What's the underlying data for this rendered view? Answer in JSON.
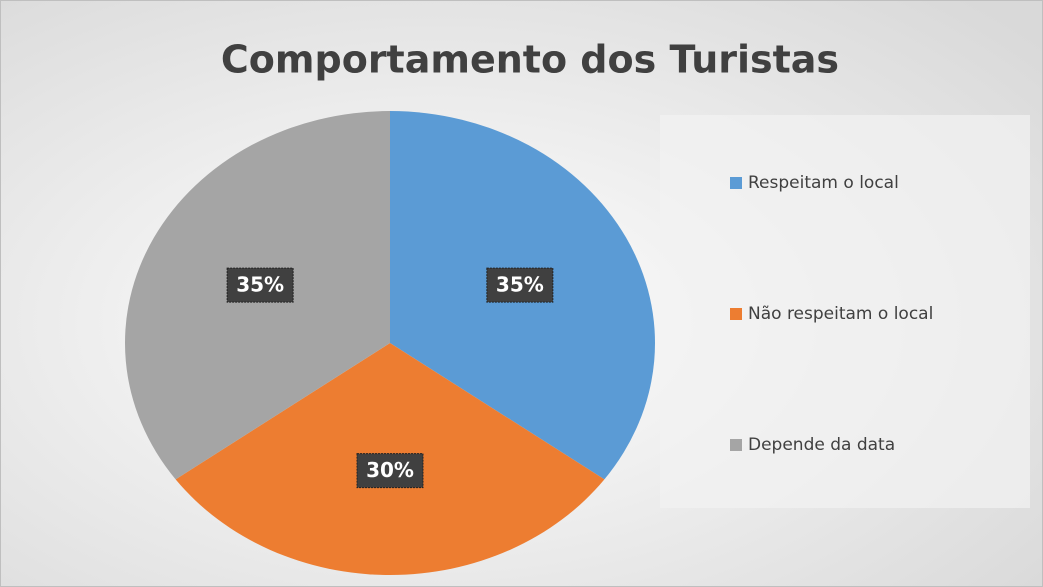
{
  "chart_data": {
    "type": "pie",
    "title": "Comportamento dos Turistas",
    "categories": [
      "Respeitam o local",
      "Não respeitam o local",
      "Depende da data"
    ],
    "values": [
      35,
      30,
      35
    ],
    "value_labels": [
      "35%",
      "30%",
      "35%"
    ],
    "colors": [
      "#5b9bd5",
      "#ed7d31",
      "#a5a5a5"
    ],
    "legend": "right"
  }
}
